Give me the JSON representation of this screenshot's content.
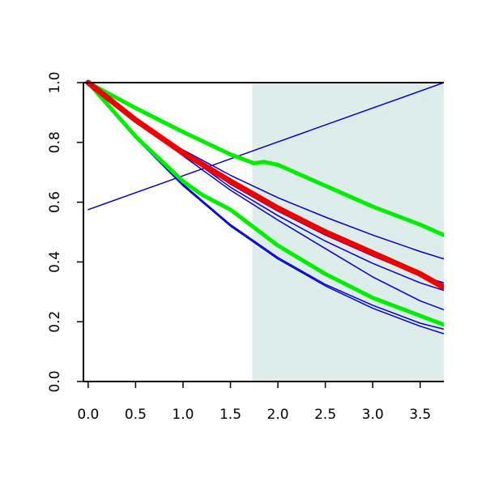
{
  "chart_data": {
    "type": "line",
    "title": "",
    "xlabel": "",
    "ylabel": "",
    "xlim": [
      -0.05,
      3.75
    ],
    "ylim": [
      0.0,
      1.0
    ],
    "x_ticks": [
      0.0,
      0.5,
      1.0,
      1.5,
      2.0,
      2.5,
      3.0,
      3.5
    ],
    "x_tick_labels": [
      "0.0",
      "0.5",
      "1.0",
      "1.5",
      "2.0",
      "2.5",
      "3.0",
      "3.5"
    ],
    "y_ticks": [
      0.0,
      0.2,
      0.4,
      0.6,
      0.8,
      1.0
    ],
    "y_tick_labels": [
      "0.0",
      "0.2",
      "0.4",
      "0.6",
      "0.8",
      "1.0"
    ],
    "grid": false,
    "legend": "none",
    "shaded_region": {
      "x_from": 1.73,
      "x_to": 3.75,
      "color": "#dfecec"
    },
    "series": [
      {
        "color": "#0000cc",
        "width": 1.5,
        "points": [
          [
            0.0,
            0.575
          ],
          [
            3.75,
            1.0
          ]
        ]
      },
      {
        "color": "#0000cc",
        "width": 1.5,
        "points": [
          [
            0.0,
            1.0
          ],
          [
            0.5,
            0.87
          ],
          [
            1.0,
            0.755
          ],
          [
            1.5,
            0.64
          ],
          [
            2.0,
            0.54
          ],
          [
            2.5,
            0.445
          ],
          [
            3.0,
            0.35
          ],
          [
            3.5,
            0.27
          ],
          [
            3.75,
            0.24
          ]
        ]
      },
      {
        "color": "#0000cc",
        "width": 1.5,
        "points": [
          [
            0.0,
            1.0
          ],
          [
            0.5,
            0.87
          ],
          [
            1.0,
            0.775
          ],
          [
            1.5,
            0.69
          ],
          [
            2.0,
            0.615
          ],
          [
            2.5,
            0.55
          ],
          [
            3.0,
            0.49
          ],
          [
            3.5,
            0.435
          ],
          [
            3.75,
            0.41
          ]
        ]
      },
      {
        "color": "#0000cc",
        "width": 1.5,
        "points": [
          [
            0.0,
            1.0
          ],
          [
            0.5,
            0.875
          ],
          [
            1.0,
            0.77
          ],
          [
            1.5,
            0.66
          ],
          [
            2.0,
            0.57
          ],
          [
            2.5,
            0.49
          ],
          [
            3.0,
            0.42
          ],
          [
            3.5,
            0.355
          ],
          [
            3.75,
            0.33
          ]
        ]
      },
      {
        "color": "#0000cc",
        "width": 1.5,
        "points": [
          [
            0.0,
            1.0
          ],
          [
            0.5,
            0.875
          ],
          [
            1.0,
            0.765
          ],
          [
            1.5,
            0.65
          ],
          [
            2.0,
            0.555
          ],
          [
            2.5,
            0.47
          ],
          [
            3.0,
            0.395
          ],
          [
            3.5,
            0.33
          ],
          [
            3.75,
            0.305
          ]
        ]
      },
      {
        "color": "#0000cc",
        "width": 1.5,
        "points": [
          [
            0.0,
            1.0
          ],
          [
            0.5,
            0.82
          ],
          [
            1.0,
            0.66
          ],
          [
            1.5,
            0.525
          ],
          [
            2.0,
            0.415
          ],
          [
            2.5,
            0.325
          ],
          [
            3.0,
            0.255
          ],
          [
            3.5,
            0.195
          ],
          [
            3.75,
            0.175
          ]
        ]
      },
      {
        "color": "#0000cc",
        "width": 1.5,
        "points": [
          [
            0.0,
            1.0
          ],
          [
            0.5,
            0.815
          ],
          [
            1.0,
            0.655
          ],
          [
            1.5,
            0.52
          ],
          [
            2.0,
            0.41
          ],
          [
            2.5,
            0.32
          ],
          [
            3.0,
            0.245
          ],
          [
            3.5,
            0.185
          ],
          [
            3.75,
            0.16
          ]
        ]
      },
      {
        "color": "#00ee00",
        "width": 5,
        "points": [
          [
            0.0,
            1.0
          ],
          [
            0.5,
            0.915
          ],
          [
            1.0,
            0.835
          ],
          [
            1.5,
            0.76
          ],
          [
            1.75,
            0.73
          ],
          [
            1.85,
            0.735
          ],
          [
            2.0,
            0.725
          ],
          [
            2.5,
            0.655
          ],
          [
            3.0,
            0.585
          ],
          [
            3.5,
            0.525
          ],
          [
            3.75,
            0.49
          ]
        ]
      },
      {
        "color": "#00ee00",
        "width": 5,
        "points": [
          [
            0.0,
            1.0
          ],
          [
            0.5,
            0.82
          ],
          [
            1.0,
            0.67
          ],
          [
            1.2,
            0.625
          ],
          [
            1.35,
            0.6
          ],
          [
            1.5,
            0.575
          ],
          [
            2.0,
            0.455
          ],
          [
            2.5,
            0.36
          ],
          [
            3.0,
            0.28
          ],
          [
            3.5,
            0.22
          ],
          [
            3.75,
            0.19
          ]
        ]
      },
      {
        "color": "#ee0000",
        "width": 7,
        "points": [
          [
            0.0,
            1.0
          ],
          [
            0.5,
            0.875
          ],
          [
            1.0,
            0.765
          ],
          [
            1.5,
            0.67
          ],
          [
            2.0,
            0.58
          ],
          [
            2.5,
            0.5
          ],
          [
            3.0,
            0.43
          ],
          [
            3.5,
            0.36
          ],
          [
            3.75,
            0.315
          ]
        ]
      }
    ]
  }
}
